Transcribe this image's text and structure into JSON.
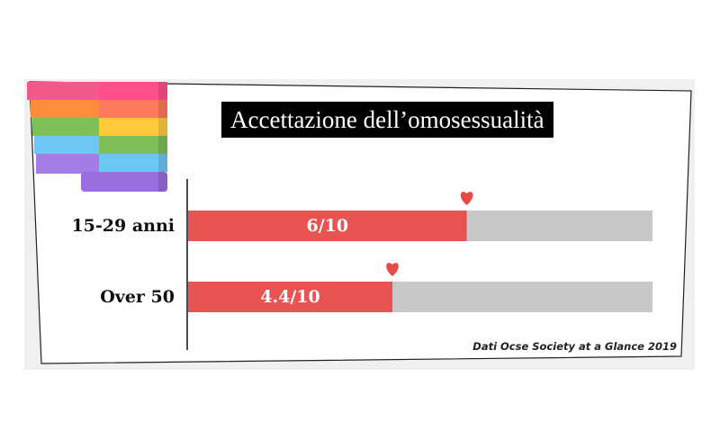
{
  "title": "Accettazione dell’omosessualità",
  "source": "Dati Ocse Society at a Glance 2019",
  "icons": [
    "rainbow-flag-icon",
    "heart-icon"
  ],
  "colors": {
    "filled": "#e85452",
    "empty": "#c8c8c8",
    "heart": "#e84a4a"
  },
  "chart_data": {
    "type": "bar",
    "orientation": "horizontal",
    "categories": [
      "15-29 anni",
      "Over 50"
    ],
    "values": [
      6,
      4.4
    ],
    "value_labels": [
      "6/10",
      "4.4/10"
    ],
    "xlim": [
      0,
      10
    ],
    "title": "Accettazione dell’omosessualità",
    "xlabel": "",
    "ylabel": ""
  }
}
